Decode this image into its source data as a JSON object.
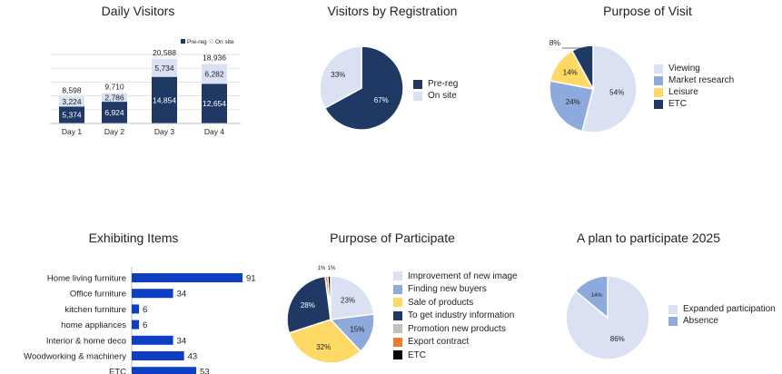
{
  "colors": {
    "navy": "#1f3864",
    "light_blue": "#d9e1f2",
    "mid_blue": "#8ea9db",
    "yellow": "#ffd966",
    "gray": "#bfbfbf",
    "orange": "#ed7d31",
    "black": "#000000",
    "bar_blue": "#0d3ec4"
  },
  "chart_data": [
    {
      "type": "bar",
      "title": "Daily Visitors",
      "stacked": true,
      "categories": [
        "Day 1",
        "Day 2",
        "Day 3",
        "Day 4"
      ],
      "series": [
        {
          "name": "Pre-reg",
          "values": [
            5374,
            6924,
            14854,
            12654
          ],
          "labels": [
            "5,374",
            "6,924",
            "14,854",
            "12,654"
          ]
        },
        {
          "name": "On site",
          "values": [
            3224,
            2786,
            5734,
            6282
          ],
          "labels": [
            "3,224",
            "2,786",
            "5,734",
            "6,282"
          ]
        }
      ],
      "totals": [
        8598,
        9710,
        20588,
        18936
      ],
      "total_labels": [
        "8,598",
        "9,710",
        "20,588",
        "18,936"
      ],
      "legend": [
        "Pre-reg",
        "On site"
      ],
      "legend_position": "top-right",
      "grid": true,
      "ylim": [
        0,
        22000
      ]
    },
    {
      "type": "pie",
      "title": "Visitors by Registration",
      "slices": [
        {
          "name": "Pre-reg",
          "value": 67,
          "label": "67%"
        },
        {
          "name": "On site",
          "value": 33,
          "label": "33%"
        }
      ],
      "legend_position": "right"
    },
    {
      "type": "pie",
      "title": "Purpose of Visit",
      "slices": [
        {
          "name": "Viewing",
          "value": 54,
          "label": "54%"
        },
        {
          "name": "Market research",
          "value": 24,
          "label": "24%"
        },
        {
          "name": "Leisure",
          "value": 14,
          "label": "14%"
        },
        {
          "name": "ETC",
          "value": 8,
          "label": "8%"
        }
      ],
      "legend_position": "right"
    },
    {
      "type": "bar",
      "orientation": "horizontal",
      "title": "Exhibiting Items",
      "categories": [
        "Home living furniture",
        "Office furniture",
        "kitchen furniture",
        "home appliances",
        "Interior & home deco",
        "Woodworking & machinery",
        "ETC"
      ],
      "values": [
        91,
        34,
        6,
        6,
        34,
        43,
        53
      ],
      "value_labels": [
        "91",
        "34",
        "6",
        "6",
        "34",
        "43",
        "53"
      ],
      "xlim": [
        0,
        95
      ],
      "grid": false
    },
    {
      "type": "pie",
      "title": "Purpose of Participate",
      "slices": [
        {
          "name": "Improvement  of new image",
          "value": 23,
          "label": "23%"
        },
        {
          "name": "Finding new buyers",
          "value": 15,
          "label": "15%"
        },
        {
          "name": "Sale of products",
          "value": 32,
          "label": "32%"
        },
        {
          "name": "To get industry information",
          "value": 28,
          "label": "28%"
        },
        {
          "name": "Promotion new products",
          "value": 0,
          "label": ""
        },
        {
          "name": "Export contract",
          "value": 1,
          "label": "1%"
        },
        {
          "name": "ETC",
          "value": 1,
          "label": "1%"
        }
      ],
      "legend_position": "right"
    },
    {
      "type": "pie",
      "title": "A plan to participate 2025",
      "slices": [
        {
          "name": "Expanded participation",
          "value": 86,
          "label": "86%"
        },
        {
          "name": "Absence",
          "value": 14,
          "label": "14%"
        }
      ],
      "legend_position": "right"
    }
  ]
}
